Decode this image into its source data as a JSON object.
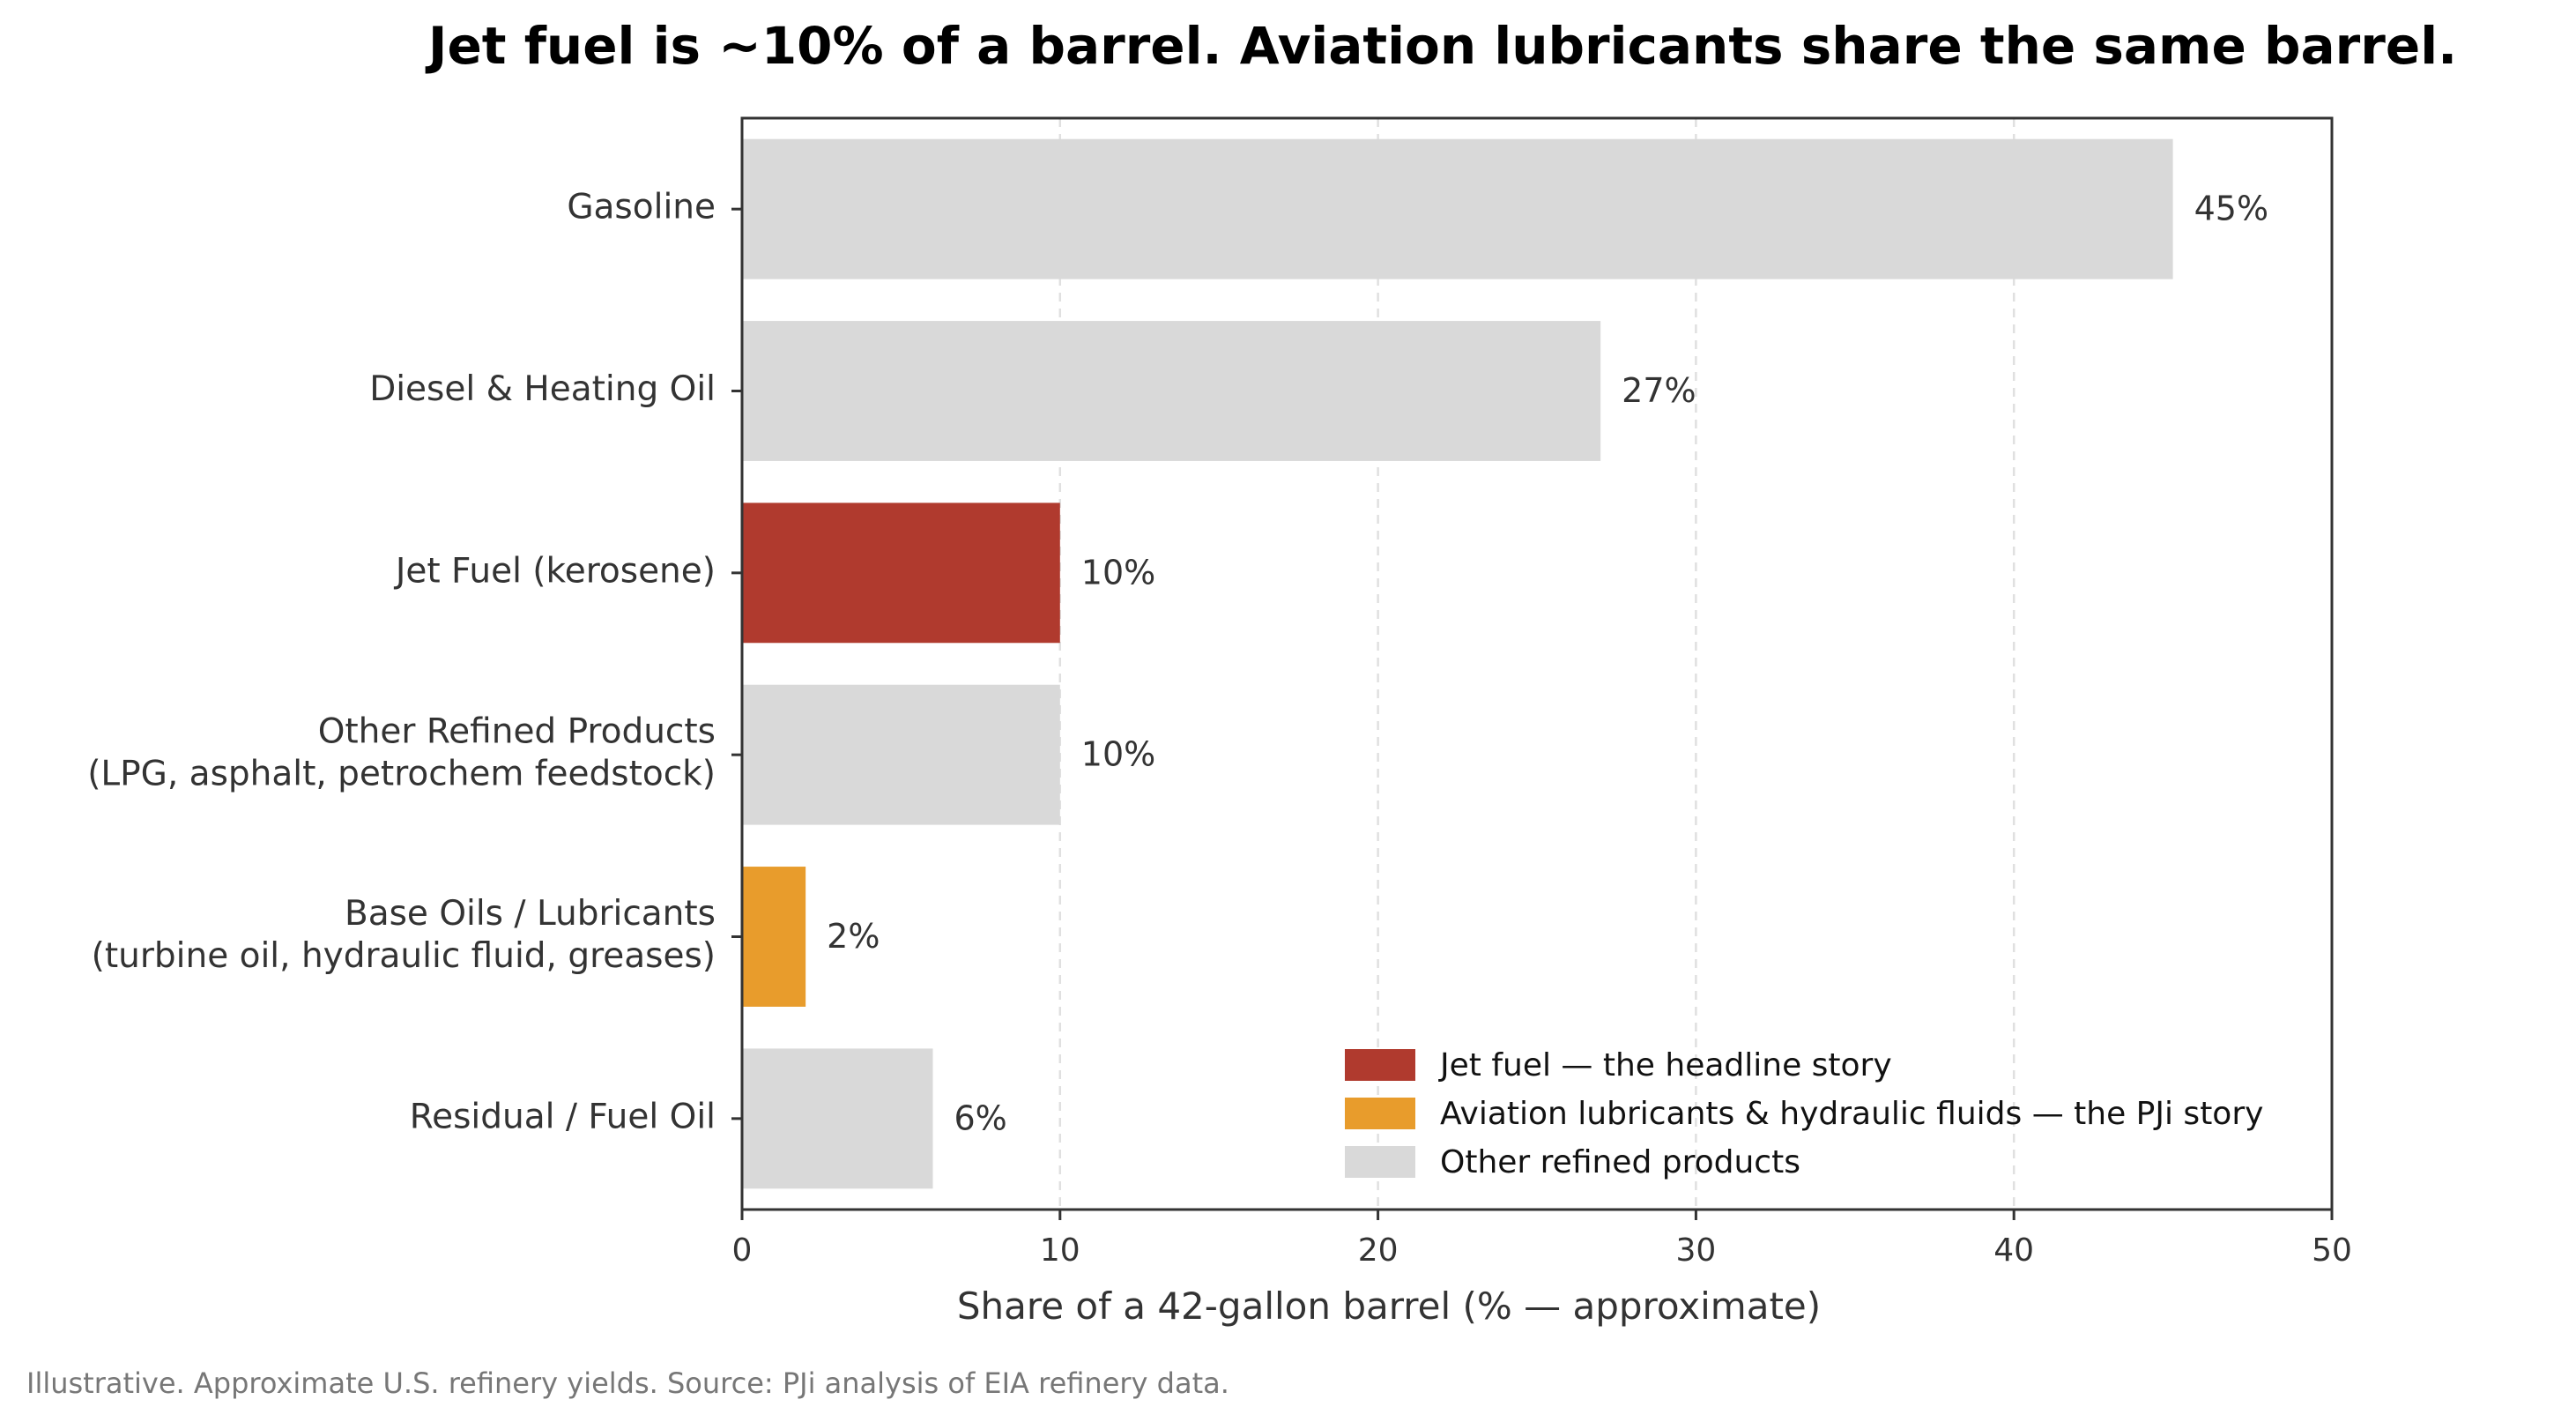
{
  "chart_data": {
    "type": "bar",
    "orientation": "horizontal",
    "title": "Jet fuel is ~10% of a barrel. Aviation lubricants share the same barrel.",
    "xlabel": "Share of a 42-gallon barrel (% — approximate)",
    "ylabel": "",
    "xlim": [
      0,
      50
    ],
    "xticks": [
      0,
      10,
      20,
      30,
      40,
      50
    ],
    "grid": "vertical dashed",
    "legend_position": "bottom-right",
    "value_suffix": "%",
    "categories": [
      [
        "Gasoline"
      ],
      [
        "Diesel & Heating Oil"
      ],
      [
        "Jet Fuel (kerosene)"
      ],
      [
        "Other Refined Products",
        "(LPG, asphalt, petrochem feedstock)"
      ],
      [
        "Base Oils / Lubricants",
        "(turbine oil, hydraulic fluid, greases)"
      ],
      [
        "Residual / Fuel Oil"
      ]
    ],
    "values": [
      45,
      27,
      10,
      10,
      2,
      6
    ],
    "bar_groups": [
      "other",
      "other",
      "jet",
      "other",
      "lube",
      "other"
    ],
    "colors": {
      "jet": "#b03a2e",
      "lube": "#e89c2c",
      "other": "#d9d9d9"
    },
    "legend": [
      {
        "key": "jet",
        "label": "Jet fuel — the headline story"
      },
      {
        "key": "lube",
        "label": "Aviation lubricants & hydraulic fluids — the PJi story"
      },
      {
        "key": "other",
        "label": "Other refined products"
      }
    ]
  },
  "footnote": "Illustrative. Approximate U.S. refinery yields. Source: PJi analysis of EIA refinery data."
}
